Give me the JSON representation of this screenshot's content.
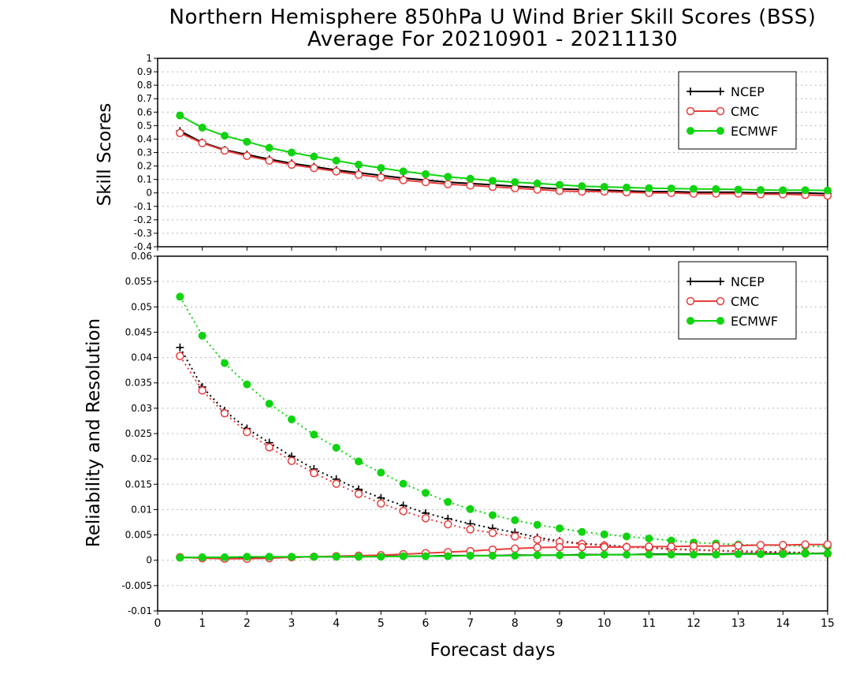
{
  "title": [
    "Northern Hemisphere 850hPa U Wind Brier Skill Scores (BSS)",
    "Average For 20210901 - 20211130"
  ],
  "xlabel": "Forecast days",
  "colors": {
    "NCEP": "#000000",
    "CMC": "#e83c3c",
    "ECMWF": "#0fd40f",
    "grid": "#b4b4b4"
  },
  "chart_data": [
    {
      "type": "line",
      "ylabel": "Skill Scores",
      "xlim": [
        0,
        15
      ],
      "ylim": [
        -0.4,
        1
      ],
      "xticks": [
        "0",
        "1",
        "2",
        "3",
        "4",
        "5",
        "6",
        "7",
        "8",
        "9",
        "10",
        "11",
        "12",
        "13",
        "14",
        "15"
      ],
      "yticks": [
        "-0.4",
        "-0.3",
        "-0.2",
        "-0.1",
        "0",
        "0.1",
        "0.2",
        "0.3",
        "0.4",
        "0.5",
        "0.6",
        "0.7",
        "0.8",
        "0.9",
        "1"
      ],
      "grid": true,
      "legend": "top-right",
      "x": [
        0.5,
        1,
        1.5,
        2,
        2.5,
        3,
        3.5,
        4,
        4.5,
        5,
        5.5,
        6,
        6.5,
        7,
        7.5,
        8,
        8.5,
        9,
        9.5,
        10,
        10.5,
        11,
        11.5,
        12,
        12.5,
        13,
        13.5,
        14,
        14.5,
        15
      ],
      "series": [
        {
          "name": "NCEP",
          "marker": "plus",
          "style": "solid",
          "values": [
            0.46,
            0.375,
            0.32,
            0.285,
            0.25,
            0.22,
            0.195,
            0.17,
            0.15,
            0.13,
            0.11,
            0.095,
            0.08,
            0.07,
            0.06,
            0.05,
            0.04,
            0.03,
            0.025,
            0.02,
            0.015,
            0.01,
            0.01,
            0.005,
            0.005,
            0.005,
            0.0,
            0.0,
            0.0,
            -0.005
          ]
        },
        {
          "name": "CMC",
          "marker": "open-circle",
          "style": "solid",
          "values": [
            0.445,
            0.37,
            0.315,
            0.275,
            0.24,
            0.21,
            0.185,
            0.16,
            0.135,
            0.115,
            0.095,
            0.08,
            0.065,
            0.055,
            0.045,
            0.035,
            0.025,
            0.015,
            0.01,
            0.01,
            0.005,
            0.0,
            0.0,
            -0.005,
            -0.005,
            -0.005,
            -0.01,
            -0.01,
            -0.015,
            -0.02
          ]
        },
        {
          "name": "ECMWF",
          "marker": "filled-circle",
          "style": "solid",
          "values": [
            0.575,
            0.485,
            0.425,
            0.38,
            0.335,
            0.3,
            0.27,
            0.24,
            0.21,
            0.185,
            0.16,
            0.14,
            0.12,
            0.105,
            0.09,
            0.08,
            0.07,
            0.06,
            0.05,
            0.045,
            0.04,
            0.035,
            0.033,
            0.03,
            0.028,
            0.025,
            0.022,
            0.02,
            0.02,
            0.018
          ]
        }
      ]
    },
    {
      "type": "line",
      "ylabel": "Reliability and Resolution",
      "xlim": [
        0,
        15
      ],
      "ylim": [
        -0.01,
        0.06
      ],
      "xticks": [
        "0",
        "1",
        "2",
        "3",
        "4",
        "5",
        "6",
        "7",
        "8",
        "9",
        "10",
        "11",
        "12",
        "13",
        "14",
        "15"
      ],
      "yticks": [
        "-0.01",
        "-0.005",
        "0",
        "0.005",
        "0.01",
        "0.015",
        "0.02",
        "0.025",
        "0.03",
        "0.035",
        "0.04",
        "0.045",
        "0.05",
        "0.055",
        "0.06"
      ],
      "grid": true,
      "legend": "top-right",
      "x": [
        0.5,
        1,
        1.5,
        2,
        2.5,
        3,
        3.5,
        4,
        4.5,
        5,
        5.5,
        6,
        6.5,
        7,
        7.5,
        8,
        8.5,
        9,
        9.5,
        10,
        10.5,
        11,
        11.5,
        12,
        12.5,
        13,
        13.5,
        14,
        14.5,
        15
      ],
      "series": [
        {
          "name": "NCEP",
          "group": "resolution",
          "marker": "plus",
          "style": "dotted",
          "values": [
            0.042,
            0.0342,
            0.0295,
            0.026,
            0.0232,
            0.0205,
            0.018,
            0.016,
            0.014,
            0.0123,
            0.0108,
            0.0093,
            0.0082,
            0.0072,
            0.0063,
            0.0055,
            0.0045,
            0.0038,
            0.0033,
            0.003,
            0.0027,
            0.0025,
            0.0022,
            0.0021,
            0.0019,
            0.0018,
            0.0017,
            0.0016,
            0.0015,
            0.0012
          ]
        },
        {
          "name": "CMC",
          "group": "resolution",
          "marker": "open-circle",
          "style": "dotted",
          "values": [
            0.0403,
            0.0335,
            0.029,
            0.0253,
            0.0223,
            0.0196,
            0.0172,
            0.0151,
            0.0131,
            0.0112,
            0.0097,
            0.0083,
            0.0071,
            0.0061,
            0.0054,
            0.0047,
            0.0041,
            0.0036,
            0.0032,
            0.0029,
            0.0026,
            0.0024,
            0.0022,
            0.002,
            0.0019,
            0.0017,
            0.0016,
            0.0015,
            0.0014,
            0.0013
          ]
        },
        {
          "name": "ECMWF",
          "group": "resolution",
          "marker": "filled-circle",
          "style": "dotted",
          "values": [
            0.052,
            0.0443,
            0.0389,
            0.0347,
            0.0309,
            0.0278,
            0.0248,
            0.0222,
            0.0195,
            0.0173,
            0.0151,
            0.0133,
            0.0115,
            0.0101,
            0.0089,
            0.0079,
            0.007,
            0.0063,
            0.0056,
            0.0051,
            0.0047,
            0.0043,
            0.0039,
            0.0035,
            0.0033,
            0.0031,
            0.003,
            0.0029,
            0.0028,
            0.0027
          ]
        },
        {
          "name": "NCEP",
          "group": "reliability",
          "marker": "plus",
          "style": "solid",
          "values": [
            0.0006,
            0.0005,
            0.0005,
            0.0005,
            0.0006,
            0.0006,
            0.0007,
            0.0007,
            0.0007,
            0.0008,
            0.0008,
            0.0008,
            0.0009,
            0.0009,
            0.0009,
            0.001,
            0.001,
            0.001,
            0.0011,
            0.0011,
            0.0011,
            0.0012,
            0.0012,
            0.0012,
            0.0012,
            0.0013,
            0.0013,
            0.0013,
            0.0013,
            0.0014
          ]
        },
        {
          "name": "CMC",
          "group": "reliability",
          "marker": "open-circle",
          "style": "solid",
          "values": [
            0.0006,
            0.0004,
            0.0003,
            0.0003,
            0.0004,
            0.0006,
            0.0007,
            0.0008,
            0.0009,
            0.001,
            0.0012,
            0.0014,
            0.0016,
            0.0018,
            0.0021,
            0.0023,
            0.0025,
            0.0026,
            0.0026,
            0.0026,
            0.0026,
            0.0027,
            0.0027,
            0.0028,
            0.0028,
            0.0029,
            0.003,
            0.003,
            0.0031,
            0.0031
          ]
        },
        {
          "name": "ECMWF",
          "group": "reliability",
          "marker": "filled-circle",
          "style": "solid",
          "values": [
            0.0005,
            0.0006,
            0.0006,
            0.0007,
            0.0007,
            0.0007,
            0.0007,
            0.0007,
            0.0007,
            0.0007,
            0.0008,
            0.0008,
            0.0008,
            0.0009,
            0.0009,
            0.0009,
            0.001,
            0.001,
            0.001,
            0.0011,
            0.0011,
            0.0011,
            0.0011,
            0.0011,
            0.0011,
            0.0012,
            0.0012,
            0.0012,
            0.0013,
            0.0013
          ]
        }
      ]
    }
  ]
}
